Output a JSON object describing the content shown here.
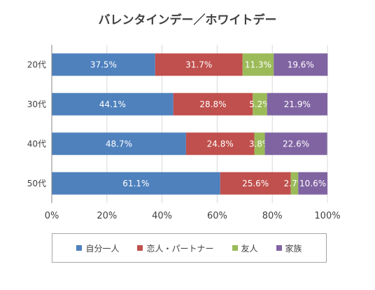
{
  "chart_data": {
    "type": "bar",
    "orientation": "horizontal",
    "stacked": true,
    "title": "バレンタインデー／ホワイトデー",
    "categories": [
      "20代",
      "30代",
      "40代",
      "50代"
    ],
    "series": [
      {
        "name": "自分一人",
        "values": [
          37.5,
          44.1,
          48.7,
          61.1
        ],
        "labels": [
          "37.5%",
          "44.1%",
          "48.7%",
          "61.1%"
        ],
        "color": "#4f81bd"
      },
      {
        "name": "恋人・パートナー",
        "values": [
          31.7,
          28.8,
          24.8,
          25.6
        ],
        "labels": [
          "31.7%",
          "28.8%",
          "24.8%",
          "25.6%"
        ],
        "color": "#c0504d"
      },
      {
        "name": "友人",
        "values": [
          11.3,
          5.2,
          3.8,
          2.7
        ],
        "labels": [
          "11.3%",
          "5.2%",
          "3.8%",
          "2.7%"
        ],
        "color": "#9bbb59"
      },
      {
        "name": "家族",
        "values": [
          19.6,
          21.9,
          22.6,
          10.6
        ],
        "labels": [
          "19.6%",
          "21.9%",
          "22.6%",
          "10.6%"
        ],
        "color": "#8064a2"
      }
    ],
    "xlim": [
      0,
      100
    ],
    "xticks": [
      "0%",
      "20%",
      "40%",
      "60%",
      "80%",
      "100%"
    ],
    "grid": true,
    "legend_position": "bottom"
  }
}
